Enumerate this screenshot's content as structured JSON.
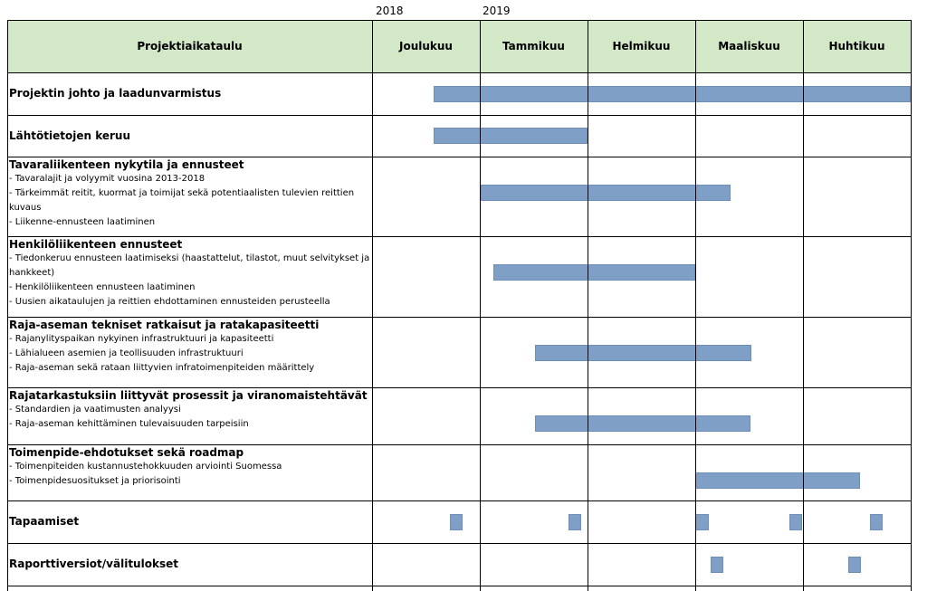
{
  "years": [
    "2018",
    "2019"
  ],
  "header": {
    "title": "Projektiaikataulu",
    "months": [
      "Joulukuu",
      "Tammikuu",
      "Helmikuu",
      "Maaliskuu",
      "Huhtikuu"
    ]
  },
  "tasks": [
    {
      "title": "Projektin johto ja laadunvarmistus",
      "subs": [],
      "bars": [
        [
          0.57,
          5.0
        ]
      ]
    },
    {
      "title": "Lähtötietojen keruu",
      "subs": [],
      "bars": [
        [
          0.57,
          2.0
        ]
      ]
    },
    {
      "title": "Tavaraliikenteen nykytila ja ennusteet",
      "subs": [
        " - Tavaralajit ja volyymit vuosina 2013-2018",
        "- Tärkeimmät reitit, kuormat ja toimijat sekä potentiaalisten tulevien reittien kuvaus",
        "- Liikenne-ennusteen laatiminen"
      ],
      "bars": [
        [
          1.01,
          3.33
        ]
      ]
    },
    {
      "title": "Henkilöliikenteen ennusteet",
      "subs": [
        "- Tiedonkeruu ennusteen laatimiseksi (haastattelut, tilastot, muut selvitykset ja hankkeet)",
        "- Henkilöliikenteen ennusteen laatiminen",
        "- Uusien aikataulujen ja reittien ehdottaminen ennusteiden perusteella"
      ],
      "bars": [
        [
          1.13,
          3.0
        ]
      ]
    },
    {
      "title": "Raja-aseman tekniset ratkaisut ja ratakapasiteetti",
      "subs": [
        "- Rajanylityspaikan nykyinen infrastruktuuri ja kapasiteetti",
        "- Lähialueen asemien ja teollisuuden infrastruktuuri",
        "- Raja-aseman sekä rataan liittyvien infratoimenpiteiden määrittely"
      ],
      "bars": [
        [
          1.51,
          3.52
        ]
      ]
    },
    {
      "title": "Rajatarkastuksiin liittyvät prosessit ja viranomaistehtävät",
      "subs": [
        "- Standardien ja vaatimusten analyysi",
        "- Raja-aseman kehittäminen tulevaisuuden tarpeisiin"
      ],
      "bars": [
        [
          1.51,
          3.51
        ]
      ]
    },
    {
      "title": "Toimenpide-ehdotukset sekä roadmap",
      "subs": [
        "- Toimenpiteiden kustannustehokkuuden arviointi Suomessa",
        "- Toimenpidesuositukset ja priorisointi"
      ],
      "bars": [
        [
          3.0,
          4.53
        ]
      ]
    },
    {
      "title": "Tapaamiset",
      "subs": [],
      "bars": [
        [
          0.72,
          0.84
        ],
        [
          1.82,
          1.94
        ],
        [
          3.0,
          3.13
        ],
        [
          3.87,
          3.99
        ],
        [
          4.62,
          4.74
        ]
      ]
    },
    {
      "title": "Raporttiversiot/välitulokset",
      "subs": [],
      "bars": [
        [
          3.14,
          3.26
        ],
        [
          4.42,
          4.54
        ]
      ]
    }
  ],
  "colors": {
    "header_bg": "#d3e8c6",
    "bar": "#7f9fc7"
  }
}
